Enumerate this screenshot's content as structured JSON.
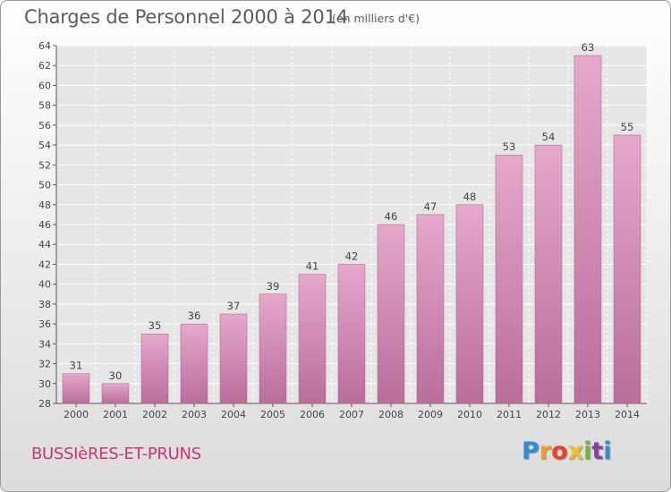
{
  "chart_data": {
    "type": "bar",
    "title": "Charges de Personnel 2000 à 2014",
    "subtitle": "(en milliers d'€)",
    "categories": [
      "2000",
      "2001",
      "2002",
      "2003",
      "2004",
      "2005",
      "2006",
      "2007",
      "2008",
      "2009",
      "2010",
      "2011",
      "2012",
      "2013",
      "2014"
    ],
    "values": [
      31,
      30,
      35,
      36,
      37,
      39,
      41,
      42,
      46,
      47,
      48,
      53,
      54,
      63,
      55
    ],
    "ylim": [
      28,
      64
    ],
    "yticks": [
      28,
      30,
      32,
      34,
      36,
      38,
      40,
      42,
      44,
      46,
      48,
      50,
      52,
      54,
      56,
      58,
      60,
      62,
      64
    ],
    "xlabel": "",
    "ylabel": "",
    "grid": true,
    "bar_color": "#d98cb8"
  },
  "footer": {
    "commune": "BUSSIèRES-ET-PRUNS",
    "logo_letters": [
      "P",
      "r",
      "o",
      "x",
      "i",
      "t",
      "i"
    ],
    "logo_colors": [
      "#2c8fd6",
      "#f0a020",
      "#e8422e",
      "#f0c020",
      "#6cb83a",
      "#8a3fa0",
      "#2c8fd6"
    ]
  }
}
